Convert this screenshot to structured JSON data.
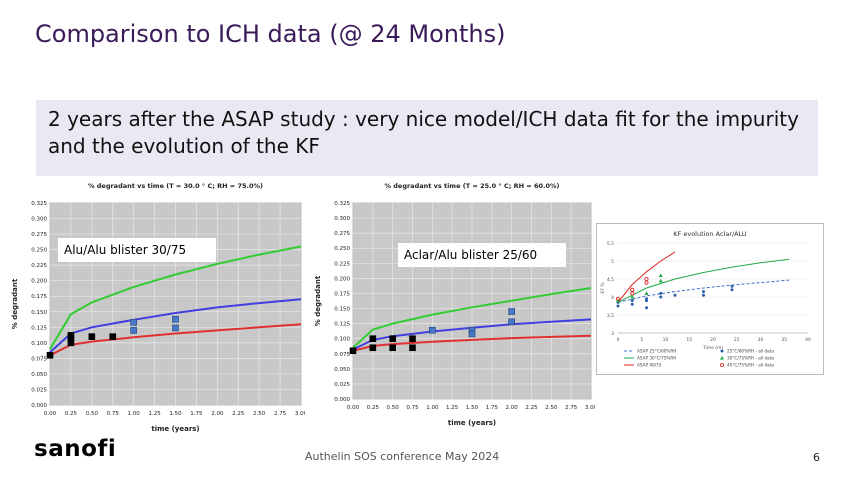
{
  "slide": {
    "title": "Comparison to ICH data (@ 24 Months)",
    "banner": "2 years after the ASAP study : very nice model/ICH data fit for the impurity and the evolution of the KF",
    "logo": "sanofi",
    "footer": "Authelin SOS conference May 2024",
    "page_number": "6"
  },
  "chart_data": [
    {
      "type": "line",
      "title": "% degradant vs time (T = 30.0 ° C; RH = 75.0%)",
      "annotation": "Alu/Alu blister 30/75",
      "xlabel": "time (years)",
      "ylabel": "% degradant",
      "xlim": [
        0,
        3
      ],
      "ylim": [
        0,
        0.325
      ],
      "xticks": [
        "0.00",
        "0.25",
        "0.50",
        "0.75",
        "1.00",
        "1.25",
        "1.50",
        "1.75",
        "2.00",
        "2.25",
        "2.50",
        "2.75",
        "3.00"
      ],
      "yticks": [
        "0.000",
        "0.025",
        "0.050",
        "0.075",
        "0.100",
        "0.125",
        "0.150",
        "0.175",
        "0.200",
        "0.225",
        "0.250",
        "0.275",
        "0.300",
        "0.325"
      ],
      "grid": true,
      "series": [
        {
          "color": "#33cc33",
          "x": [
            0,
            0.25,
            0.5,
            1,
            1.5,
            2,
            2.5,
            3
          ],
          "y": [
            0.09,
            0.146,
            0.165,
            0.19,
            0.21,
            0.227,
            0.242,
            0.255
          ]
        },
        {
          "color": "#4040e0",
          "x": [
            0,
            0.25,
            0.5,
            1,
            1.5,
            2,
            2.5,
            3
          ],
          "y": [
            0.085,
            0.115,
            0.125,
            0.137,
            0.148,
            0.157,
            0.164,
            0.17
          ]
        },
        {
          "color": "#e03030",
          "x": [
            0,
            0.25,
            0.5,
            1,
            1.5,
            2,
            2.5,
            3
          ],
          "y": [
            0.08,
            0.097,
            0.102,
            0.109,
            0.115,
            0.12,
            0.125,
            0.13
          ]
        }
      ],
      "points": [
        {
          "color": "#000000",
          "x": [
            0,
            0.25,
            0.25,
            0.25,
            0.5,
            0.75
          ],
          "y": [
            0.08,
            0.112,
            0.1,
            0.107,
            0.11,
            0.11
          ]
        },
        {
          "color": "#4a78c8",
          "x": [
            1,
            1,
            1.5,
            1.5
          ],
          "y": [
            0.133,
            0.12,
            0.138,
            0.124
          ]
        }
      ]
    },
    {
      "type": "line",
      "title": "% degradant vs time (T = 25.0 ° C; RH = 60.0%)",
      "annotation": "Aclar/Alu blister 25/60",
      "xlabel": "time (years)",
      "ylabel": "% degradant",
      "xlim": [
        0,
        3
      ],
      "ylim": [
        0,
        0.325
      ],
      "xticks": [
        "0.00",
        "0.25",
        "0.50",
        "0.75",
        "1.00",
        "1.25",
        "1.50",
        "1.75",
        "2.00",
        "2.25",
        "2.50",
        "2.75",
        "3.00"
      ],
      "yticks": [
        "0.000",
        "0.025",
        "0.050",
        "0.075",
        "0.100",
        "0.125",
        "0.150",
        "0.175",
        "0.200",
        "0.225",
        "0.250",
        "0.275",
        "0.300",
        "0.325"
      ],
      "grid": true,
      "series": [
        {
          "color": "#33cc33",
          "x": [
            0,
            0.25,
            0.5,
            1,
            1.5,
            2,
            2.5,
            3
          ],
          "y": [
            0.085,
            0.115,
            0.125,
            0.14,
            0.152,
            0.163,
            0.174,
            0.184
          ]
        },
        {
          "color": "#4040e0",
          "x": [
            0,
            0.25,
            0.5,
            1,
            1.5,
            2,
            2.5,
            3
          ],
          "y": [
            0.082,
            0.098,
            0.104,
            0.112,
            0.118,
            0.124,
            0.128,
            0.132
          ]
        },
        {
          "color": "#e03030",
          "x": [
            0,
            0.25,
            0.5,
            1,
            1.5,
            2,
            2.5,
            3
          ],
          "y": [
            0.08,
            0.088,
            0.091,
            0.095,
            0.098,
            0.101,
            0.103,
            0.105
          ]
        }
      ],
      "points": [
        {
          "color": "#000000",
          "x": [
            0,
            0.25,
            0.25,
            0.5,
            0.5,
            0.75,
            0.75
          ],
          "y": [
            0.08,
            0.1,
            0.085,
            0.1,
            0.085,
            0.1,
            0.085
          ]
        },
        {
          "color": "#4a78c8",
          "x": [
            1,
            1.5,
            1.5,
            2,
            2
          ],
          "y": [
            0.114,
            0.114,
            0.108,
            0.145,
            0.128
          ]
        }
      ]
    },
    {
      "type": "scatter",
      "title": "KF evolution Aclar/ALU",
      "xlabel": "Time (m)",
      "ylabel": "KF %",
      "xlim": [
        0,
        40
      ],
      "ylim": [
        3,
        5.5
      ],
      "xticks": [
        "0",
        "5",
        "10",
        "15",
        "20",
        "25",
        "30",
        "35",
        "40"
      ],
      "yticks": [
        "3",
        "3,5",
        "4",
        "4,5",
        "5",
        "5,5"
      ],
      "grid": true,
      "series": [
        {
          "name": "ASAP 25°C/60%RH",
          "color": "#3a6fcc",
          "dash": true,
          "x": [
            0,
            6,
            12,
            18,
            24,
            30,
            36
          ],
          "y": [
            3.85,
            4.03,
            4.15,
            4.25,
            4.33,
            4.4,
            4.47
          ]
        },
        {
          "name": "ASAP 30°C/75%RH",
          "color": "#22aa44",
          "dash": false,
          "x": [
            0,
            6,
            12,
            18,
            24,
            30,
            36
          ],
          "y": [
            3.85,
            4.25,
            4.5,
            4.68,
            4.83,
            4.95,
            5.05
          ]
        },
        {
          "name": "ASAP 40/75",
          "color": "#dd2222",
          "dash": false,
          "x": [
            0,
            3,
            6,
            9,
            12
          ],
          "y": [
            3.85,
            4.35,
            4.7,
            5.0,
            5.25
          ]
        }
      ],
      "points": [
        {
          "name": "25°C/60%RH - all data",
          "color": "#2a5faa",
          "marker": "dot",
          "x": [
            0,
            0,
            3,
            3,
            6,
            6,
            6,
            9,
            9,
            12,
            18,
            18,
            24,
            24
          ],
          "y": [
            3.85,
            3.75,
            3.9,
            3.8,
            3.95,
            3.9,
            3.7,
            4.0,
            4.1,
            4.05,
            4.15,
            4.05,
            4.3,
            4.2
          ]
        },
        {
          "name": "30°C/75%RH - all data",
          "color": "#22aa44",
          "marker": "triangle",
          "x": [
            0,
            3,
            6,
            9,
            9
          ],
          "y": [
            3.9,
            4.0,
            4.1,
            4.6,
            4.45
          ]
        },
        {
          "name": "40°C/75%RH - all data",
          "color": "#dd2222",
          "marker": "ring",
          "x": [
            0,
            3,
            3,
            6,
            6
          ],
          "y": [
            3.95,
            4.2,
            4.1,
            4.5,
            4.4
          ]
        }
      ]
    }
  ]
}
